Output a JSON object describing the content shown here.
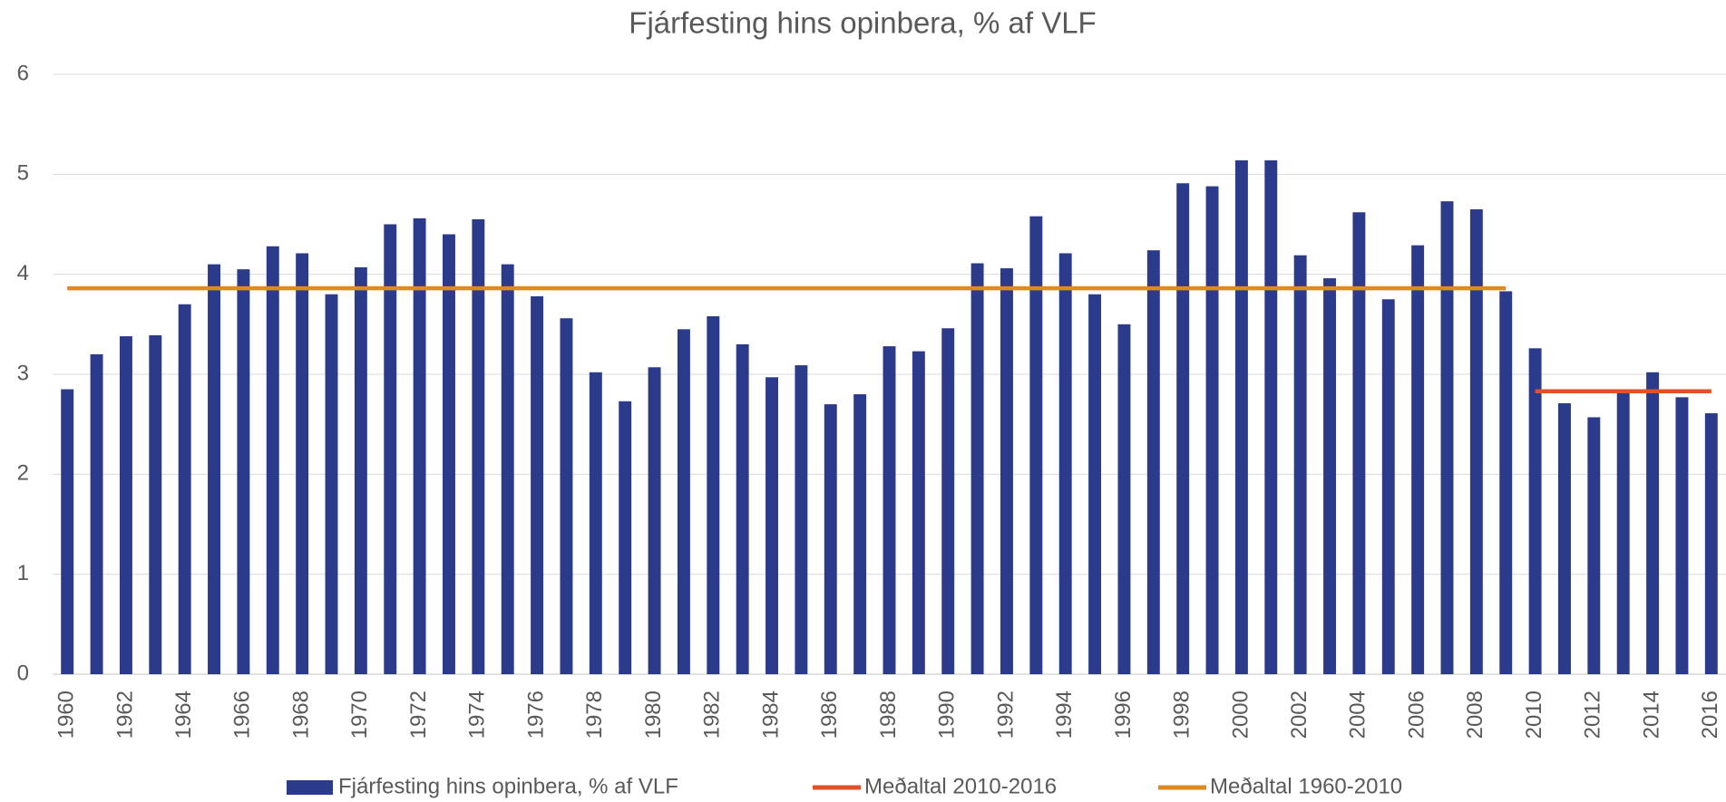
{
  "chart_data": {
    "type": "bar",
    "title": "Fjárfesting hins opinbera, % af VLF",
    "categories": [
      "1960",
      null,
      "1962",
      null,
      "1964",
      null,
      "1966",
      null,
      "1968",
      null,
      "1970",
      null,
      "1972",
      null,
      "1974",
      null,
      "1976",
      null,
      "1978",
      null,
      "1980",
      null,
      "1982",
      null,
      "1984",
      null,
      "1986",
      null,
      "1988",
      null,
      "1990",
      null,
      "1992",
      null,
      "1994",
      null,
      "1996",
      null,
      "1998",
      null,
      "2000",
      null,
      "2002",
      null,
      "2004",
      null,
      "2006",
      null,
      "2008",
      null,
      "2010",
      null,
      "2012",
      null,
      "2014",
      null,
      "2016"
    ],
    "series": [
      {
        "name": "Fjárfesting hins opinbera, % af VLF",
        "type": "bar",
        "color": "#2b3a8a",
        "values": [
          2.85,
          3.2,
          3.38,
          3.39,
          3.7,
          4.1,
          4.05,
          4.28,
          4.21,
          3.8,
          4.07,
          4.5,
          4.56,
          4.4,
          4.55,
          4.1,
          3.78,
          3.56,
          3.02,
          2.73,
          3.07,
          3.45,
          3.58,
          3.3,
          2.97,
          3.09,
          2.7,
          2.8,
          3.28,
          3.23,
          3.46,
          4.11,
          4.06,
          4.58,
          4.21,
          3.8,
          3.5,
          4.24,
          4.91,
          4.88,
          5.14,
          5.14,
          4.19,
          3.96,
          4.62,
          3.75,
          4.29,
          4.73,
          4.65,
          3.83,
          3.26,
          2.71,
          2.57,
          2.82,
          3.02,
          2.77,
          2.61
        ]
      },
      {
        "name": "Meðaltal 2010-2016",
        "type": "line",
        "color": "#e0522a",
        "values": [
          null,
          null,
          null,
          null,
          null,
          null,
          null,
          null,
          null,
          null,
          null,
          null,
          null,
          null,
          null,
          null,
          null,
          null,
          null,
          null,
          null,
          null,
          null,
          null,
          null,
          null,
          null,
          null,
          null,
          null,
          null,
          null,
          null,
          null,
          null,
          null,
          null,
          null,
          null,
          null,
          null,
          null,
          null,
          null,
          null,
          null,
          null,
          null,
          null,
          null,
          2.83,
          2.83,
          2.83,
          2.83,
          2.83,
          2.83,
          2.83
        ]
      },
      {
        "name": "Meðaltal 1960-2010",
        "type": "line",
        "color": "#e08a1e",
        "values": [
          3.86,
          3.86,
          3.86,
          3.86,
          3.86,
          3.86,
          3.86,
          3.86,
          3.86,
          3.86,
          3.86,
          3.86,
          3.86,
          3.86,
          3.86,
          3.86,
          3.86,
          3.86,
          3.86,
          3.86,
          3.86,
          3.86,
          3.86,
          3.86,
          3.86,
          3.86,
          3.86,
          3.86,
          3.86,
          3.86,
          3.86,
          3.86,
          3.86,
          3.86,
          3.86,
          3.86,
          3.86,
          3.86,
          3.86,
          3.86,
          3.86,
          3.86,
          3.86,
          3.86,
          3.86,
          3.86,
          3.86,
          3.86,
          3.86,
          3.86,
          null,
          null,
          null,
          null,
          null,
          null,
          null
        ]
      }
    ],
    "ylim": [
      0,
      6
    ],
    "yticks": [
      0,
      1,
      2,
      3,
      4,
      5,
      6
    ],
    "grid": true,
    "legend": "bottom"
  }
}
